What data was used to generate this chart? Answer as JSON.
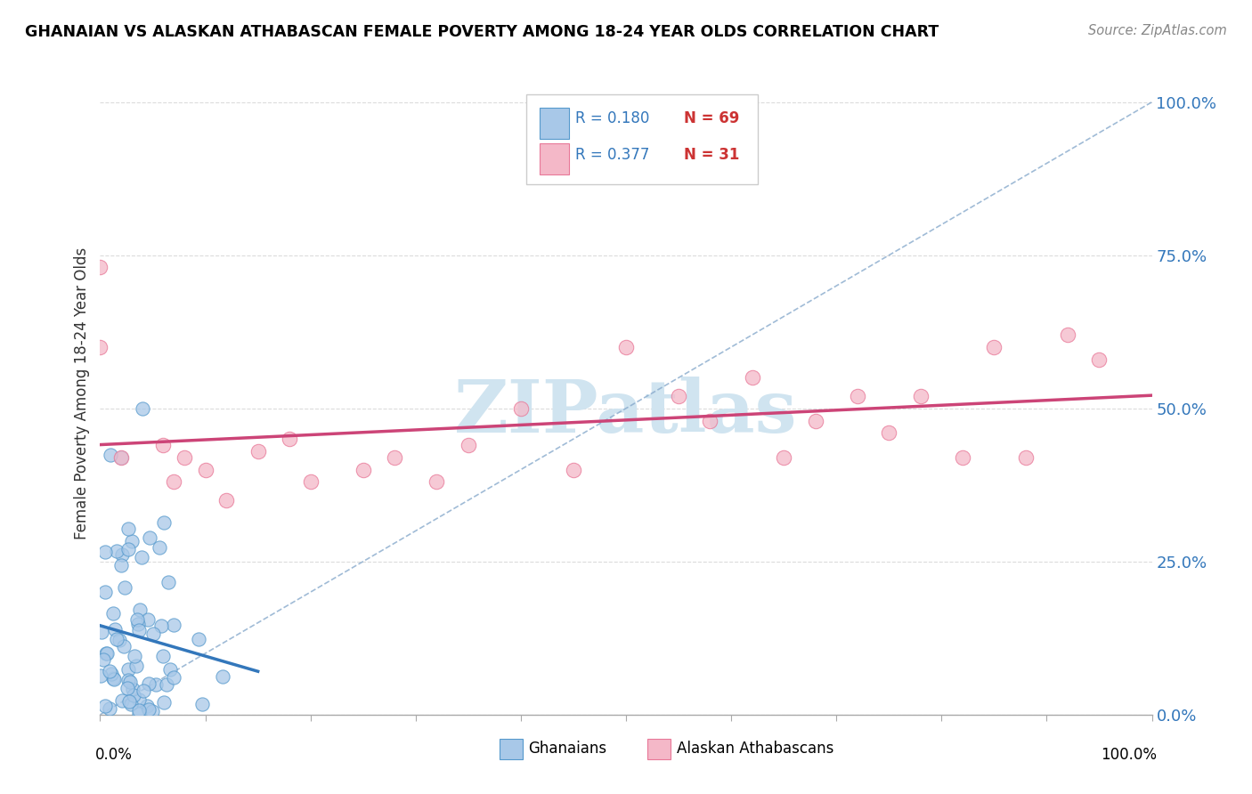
{
  "title": "GHANAIAN VS ALASKAN ATHABASCAN FEMALE POVERTY AMONG 18-24 YEAR OLDS CORRELATION CHART",
  "source": "Source: ZipAtlas.com",
  "ylabel": "Female Poverty Among 18-24 Year Olds",
  "ytick_labels": [
    "0.0%",
    "25.0%",
    "50.0%",
    "75.0%",
    "100.0%"
  ],
  "ytick_values": [
    0.0,
    0.25,
    0.5,
    0.75,
    1.0
  ],
  "legend_r1": "R = 0.180",
  "legend_n1": "N = 69",
  "legend_r2": "R = 0.377",
  "legend_n2": "N = 31",
  "color_ghanaian_fill": "#a8c8e8",
  "color_ghanaian_edge": "#5599cc",
  "color_athabascan_fill": "#f4b8c8",
  "color_athabascan_edge": "#e87898",
  "color_trend_ghanaian": "#3377bb",
  "color_trend_athabascan": "#cc4477",
  "color_dashed_line": "#88aacc",
  "color_r_text": "#3377bb",
  "color_n_text": "#cc3333",
  "color_ytick": "#3377bb",
  "watermark_text": "ZIPatlas",
  "watermark_color": "#d0e4f0",
  "gh_seed": 12,
  "at_seed": 7
}
